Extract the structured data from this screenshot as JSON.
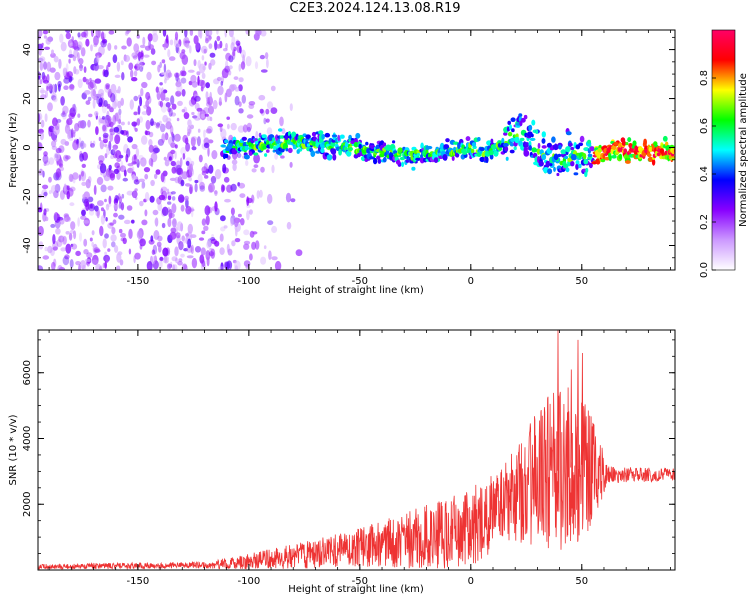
{
  "title": "C2E3.2024.124.13.08.R19",
  "chart_data": [
    {
      "type": "heatmap",
      "xlabel": "Height of straight line (km)",
      "ylabel": "Frequency (Hz)",
      "xlim": [
        -195,
        92
      ],
      "ylim": [
        -50,
        48
      ],
      "xticks": [
        -150,
        -100,
        -50,
        0,
        50
      ],
      "yticks": [
        -40,
        -20,
        0,
        20,
        40
      ],
      "colorbar": {
        "label": "Normalized spectral amplitude",
        "range": [
          0,
          1
        ],
        "ticks": [
          0.0,
          0.2,
          0.4,
          0.6,
          0.8
        ],
        "colormap": [
          "#ffffff",
          "#cc99ff",
          "#8800ff",
          "#0000ff",
          "#00ffff",
          "#00ff00",
          "#ffff00",
          "#ff0000",
          "#ff0066"
        ]
      },
      "ridge": [
        {
          "x": -110,
          "y": 0
        },
        {
          "x": -80,
          "y": 2
        },
        {
          "x": -60,
          "y": 1
        },
        {
          "x": -40,
          "y": -2
        },
        {
          "x": -25,
          "y": -3
        },
        {
          "x": -15,
          "y": -2
        },
        {
          "x": 0,
          "y": 0
        },
        {
          "x": 5,
          "y": -2
        },
        {
          "x": 12,
          "y": 0
        },
        {
          "x": 20,
          "y": 6
        },
        {
          "x": 25,
          "y": 4
        },
        {
          "x": 30,
          "y": -2
        },
        {
          "x": 40,
          "y": -5
        },
        {
          "x": 50,
          "y": -3
        },
        {
          "x": 58,
          "y": -3
        },
        {
          "x": 65,
          "y": 0
        },
        {
          "x": 75,
          "y": -2
        },
        {
          "x": 92,
          "y": -2
        }
      ]
    },
    {
      "type": "line",
      "xlabel": "Height of straight line (km)",
      "ylabel": "SNR (10 * v/v)",
      "xlim": [
        -195,
        92
      ],
      "ylim": [
        0,
        7300
      ],
      "xticks": [
        -150,
        -100,
        -50,
        0,
        50
      ],
      "yticks": [
        2000,
        4000,
        6000
      ],
      "color": "#ee3333",
      "envelope": [
        {
          "x": -195,
          "base": 100,
          "amp": 80
        },
        {
          "x": -120,
          "base": 150,
          "amp": 100
        },
        {
          "x": -100,
          "base": 250,
          "amp": 250
        },
        {
          "x": -80,
          "base": 400,
          "amp": 400
        },
        {
          "x": -60,
          "base": 600,
          "amp": 500
        },
        {
          "x": -40,
          "base": 800,
          "amp": 700
        },
        {
          "x": -20,
          "base": 1000,
          "amp": 1000
        },
        {
          "x": 0,
          "base": 1300,
          "amp": 1200
        },
        {
          "x": 15,
          "base": 2000,
          "amp": 1200
        },
        {
          "x": 25,
          "base": 2600,
          "amp": 1800
        },
        {
          "x": 38,
          "base": 3000,
          "amp": 2600
        },
        {
          "x": 50,
          "base": 3200,
          "amp": 2500
        },
        {
          "x": 57,
          "base": 3000,
          "amp": 1200
        },
        {
          "x": 62,
          "base": 2900,
          "amp": 250
        },
        {
          "x": 92,
          "base": 2900,
          "amp": 200
        }
      ],
      "peaks": [
        {
          "x": 39,
          "y": 7300
        },
        {
          "x": 48,
          "y": 7000
        },
        {
          "x": 50,
          "y": 6600
        },
        {
          "x": 45,
          "y": 6100
        }
      ]
    }
  ]
}
